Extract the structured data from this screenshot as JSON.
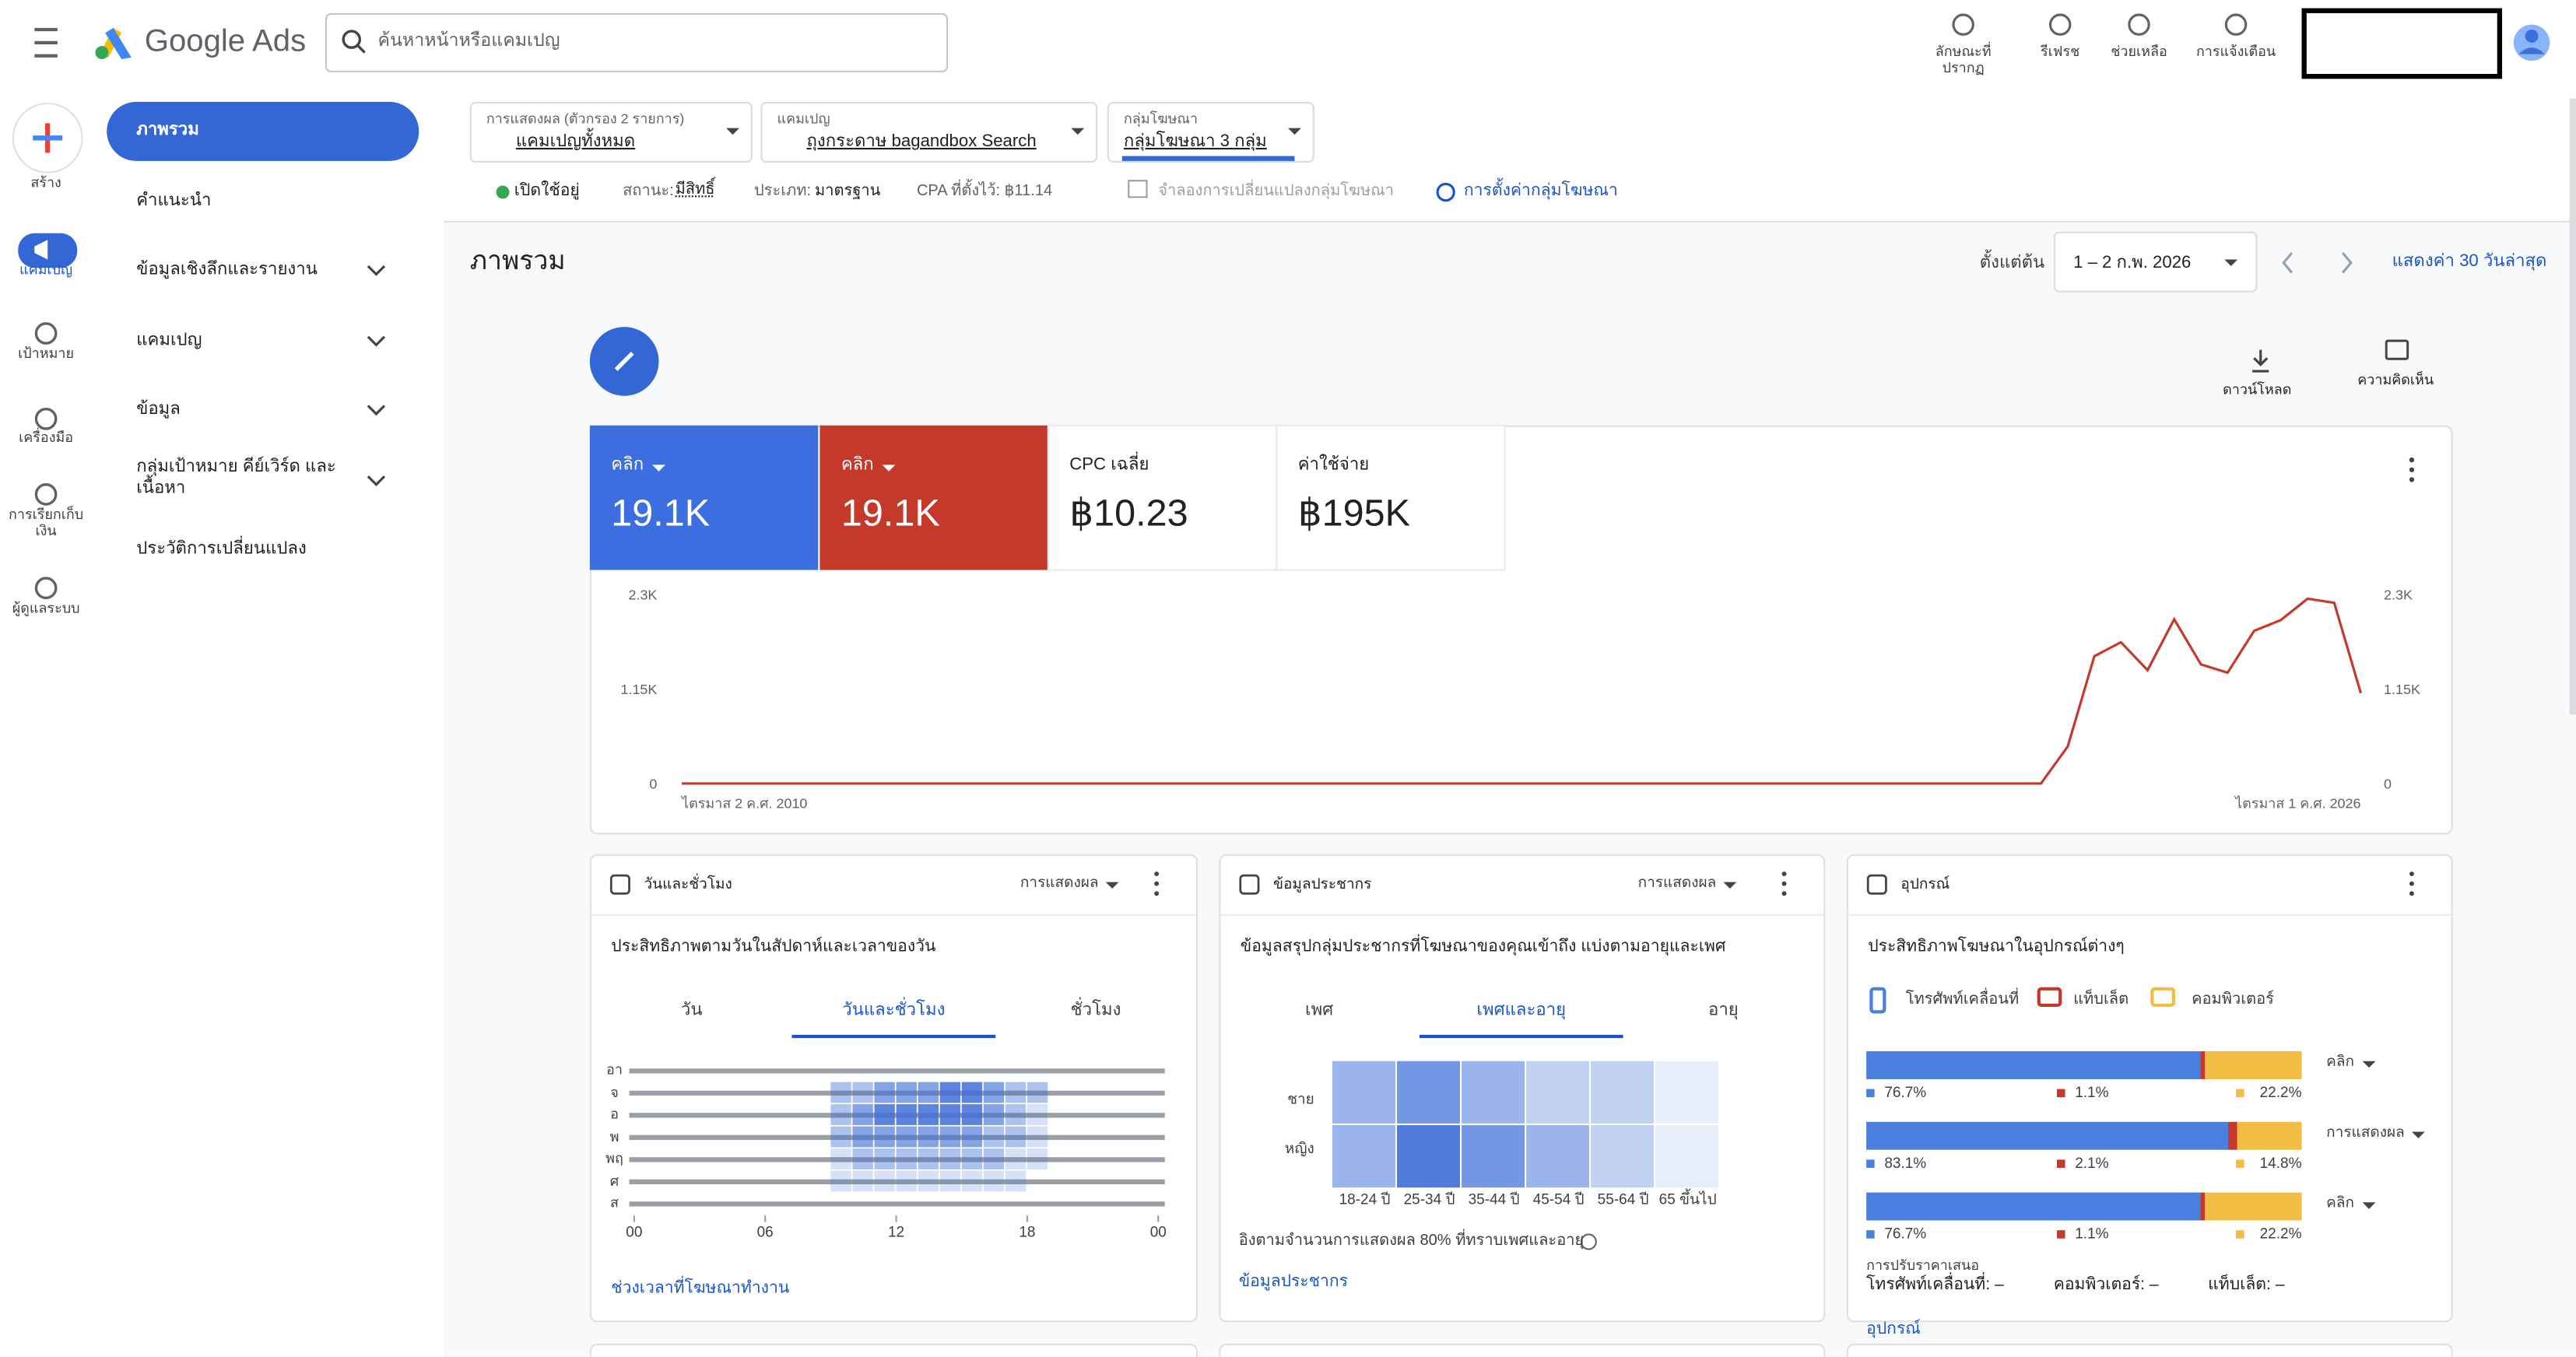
{
  "header": {
    "product": "Google Ads",
    "search_placeholder": "ค้นหาหน้าหรือแคมเปญ",
    "actions": [
      "ลักษณะที่ปรากฏ",
      "รีเฟรช",
      "ช่วยเหลือ",
      "การแจ้งเตือน"
    ]
  },
  "rail": [
    "สร้าง",
    "แคมเปญ",
    "เป้าหมาย",
    "เครื่องมือ",
    "การเรียกเก็บเงิน",
    "ผู้ดูแลระบบ"
  ],
  "nav": [
    "ภาพรวม",
    "คำแนะนำ",
    "ข้อมูลเชิงลึกและรายงาน",
    "แคมเปญ",
    "ข้อมูล",
    "กลุ่มเป้าหมาย คีย์เวิร์ด และเนื้อหา",
    "ประวัติการเปลี่ยนแปลง"
  ],
  "filters": [
    {
      "label": "การแสดงผล (ตัวกรอง 2 รายการ)",
      "value": "แคมเปญทั้งหมด"
    },
    {
      "label": "แคมเปญ",
      "value": "ถุงกระดาษ bagandbox Search"
    },
    {
      "label": "กลุ่มโฆษณา",
      "value": "กลุ่มโฆษณา 3 กลุ่ม"
    }
  ],
  "status": {
    "enabled": "เปิดใช้อยู่",
    "status_label": "สถานะ:",
    "status_value": "มีสิทธิ์",
    "type_label": "ประเภท:",
    "type_value": "มาตรฐาน",
    "cpa": "CPA ที่ตั้งไว้: ฿11.14",
    "simulate": "จำลองการเปลี่ยนแปลงกลุ่มโฆษณา",
    "settings": "การตั้งค่ากลุ่มโฆษณา"
  },
  "page": {
    "title": "ภาพรวม",
    "date_label": "ตั้งแต่ต้น",
    "date_range": "1 – 2 ก.พ. 2026",
    "last30": "แสดงค่า 30 วันล่าสุด",
    "download": "ดาวน์โหลด",
    "feedback": "ความคิดเห็น"
  },
  "scorecards": [
    {
      "label": "คลิก",
      "value": "19.1K"
    },
    {
      "label": "คลิก",
      "value": "19.1K"
    },
    {
      "label": "CPC เฉลี่ย",
      "value": "฿10.23"
    },
    {
      "label": "ค่าใช้จ่าย",
      "value": "฿195K"
    }
  ],
  "chart_data": [
    {
      "type": "line",
      "categories": [
        "ไตรมาส 2 ค.ศ. 2010",
        null,
        null,
        null,
        null,
        null,
        null,
        null,
        null,
        null,
        null,
        null,
        null,
        null,
        null,
        null,
        null,
        null,
        null,
        null,
        null,
        null,
        null,
        null,
        null,
        null,
        null,
        null,
        null,
        null,
        null,
        null,
        null,
        null,
        null,
        null,
        null,
        null,
        null,
        null,
        null,
        null,
        null,
        null,
        null,
        null,
        null,
        null,
        null,
        null,
        null,
        null,
        null,
        null,
        null,
        null,
        null,
        null,
        null,
        null,
        null,
        null,
        null,
        "ไตรมาส 1 ค.ศ. 2026"
      ],
      "series": [
        {
          "color": "#c5392b",
          "values": [
            0,
            0,
            0,
            0,
            0,
            0,
            0,
            0,
            0,
            0,
            0,
            0,
            0,
            0,
            0,
            0,
            0,
            0,
            0,
            0,
            0,
            0,
            0,
            0,
            0,
            0,
            0,
            0,
            0,
            0,
            0,
            0,
            0,
            0,
            0,
            0,
            0,
            0,
            0,
            0,
            0,
            0,
            0,
            0,
            0,
            0,
            0,
            0,
            0,
            0,
            0,
            0,
            450,
            1550,
            1720,
            1380,
            2000,
            1450,
            1350,
            1860,
            1990,
            2250,
            2200,
            1100
          ]
        }
      ],
      "ylim": [
        0,
        2300
      ],
      "yticks": [
        0,
        {
          "value": 1150,
          "label": "1.15K"
        },
        {
          "value": 2300,
          "label": "2.3K"
        }
      ],
      "y2lim": [
        0,
        2300
      ],
      "y2ticks": [
        0,
        {
          "value": 1150,
          "label": "1.15K"
        },
        {
          "value": 2300,
          "label": "2.3K"
        }
      ]
    },
    {
      "type": "heatmap",
      "title": "วันและชั่วโมง",
      "menu": "การแสดงผล",
      "subtitle": "ประสิทธิภาพตามวันในสัปดาห์และเวลาของวัน",
      "tabs": [
        "วัน",
        "วันและชั่วโมง",
        "ชั่วโมง"
      ],
      "selected_tab": 1,
      "rows": [
        "อา",
        "จ",
        "อ",
        "พ",
        "พฤ",
        "ศ",
        "ส"
      ],
      "xlim": [
        0,
        24
      ],
      "xticks": [
        {
          "value": 0,
          "label": "00"
        },
        {
          "value": 6,
          "label": "06"
        },
        12,
        18,
        {
          "value": 24,
          "label": "00"
        }
      ],
      "color": "#3f6fd8",
      "values": [
        [
          0,
          0,
          0,
          0,
          0,
          0,
          0,
          0,
          0,
          0,
          0,
          0,
          0,
          0,
          0,
          0,
          0,
          0,
          0,
          0,
          0,
          0,
          0,
          0
        ],
        [
          0,
          0,
          0,
          0,
          0,
          0,
          0,
          0,
          0,
          2,
          2,
          3,
          3,
          3,
          4,
          4,
          3,
          2,
          2,
          0,
          0,
          0,
          0,
          0
        ],
        [
          0,
          0,
          0,
          0,
          0,
          0,
          0,
          0,
          0,
          2,
          3,
          4,
          4,
          4,
          4,
          4,
          3,
          2,
          1,
          0,
          0,
          0,
          0,
          0
        ],
        [
          0,
          0,
          0,
          0,
          0,
          0,
          0,
          0,
          0,
          2,
          3,
          3,
          3,
          3,
          3,
          3,
          2,
          2,
          1,
          0,
          0,
          0,
          0,
          0
        ],
        [
          0,
          0,
          0,
          0,
          0,
          0,
          0,
          0,
          0,
          1,
          2,
          2,
          2,
          2,
          2,
          2,
          2,
          1,
          1,
          0,
          0,
          0,
          0,
          0
        ],
        [
          0,
          0,
          0,
          0,
          0,
          0,
          0,
          0,
          0,
          1,
          1,
          1,
          1,
          1,
          1,
          1,
          1,
          1,
          0,
          0,
          0,
          0,
          0,
          0
        ],
        [
          0,
          0,
          0,
          0,
          0,
          0,
          0,
          0,
          0,
          0,
          0,
          0,
          0,
          0,
          0,
          0,
          0,
          0,
          0,
          0,
          0,
          0,
          0,
          0
        ]
      ],
      "link": "ช่วงเวลาที่โฆษณาทำงาน"
    },
    {
      "type": "heatmap",
      "title": "ข้อมูลประชากร",
      "menu": "การแสดงผล",
      "subtitle": "ข้อมูลสรุปกลุ่มประชากรที่โฆษณาของคุณเข้าถึง แบ่งตามอายุและเพศ",
      "tabs": [
        "เพศ",
        "เพศและอายุ",
        "อายุ"
      ],
      "selected_tab": 1,
      "rows": [
        "ชาย",
        "หญิง"
      ],
      "categories": [
        "18-24 ปี",
        "25-34 ปี",
        "35-44 ปี",
        "45-54 ปี",
        "55-64 ปี",
        "65 ขึ้นไป"
      ],
      "color": "#3f6fd8",
      "values": [
        [
          2,
          3,
          2,
          1,
          1,
          0
        ],
        [
          2,
          4,
          3,
          2,
          1,
          0
        ]
      ],
      "note": "อิงตามจำนวนการแสดงผล 80% ที่ทราบเพศและอายุ",
      "link": "ข้อมูลประชากร"
    },
    {
      "type": "stacked_bar",
      "title": "อุปกรณ์",
      "subtitle": "ประสิทธิภาพโฆษณาในอุปกรณ์ต่างๆ",
      "categories": [
        "คลิก",
        "การแสดงผล",
        "คลิก"
      ],
      "xlim": [
        0,
        100
      ],
      "series": [
        {
          "name": "โทรศัพท์เคลื่อนที่",
          "color": "#4a7fe0",
          "values": [
            76.7,
            83.1,
            76.7
          ],
          "value_labels": [
            "76.7%",
            "83.1%",
            "76.7%"
          ]
        },
        {
          "name": "แท็บเล็ต",
          "color": "#c5392b",
          "values": [
            1.1,
            2.1,
            1.1
          ],
          "value_labels": [
            "1.1%",
            "2.1%",
            "1.1%"
          ]
        },
        {
          "name": "คอมพิวเตอร์",
          "color": "#f1bd42",
          "values": [
            22.2,
            14.8,
            22.2
          ],
          "value_labels": [
            "22.2%",
            "14.8%",
            "22.2%"
          ]
        }
      ],
      "bid_adjust": {
        "label": "การปรับราคาเสนอ",
        "items": [
          "โทรศัพท์เคลื่อนที่: –",
          "คอมพิวเตอร์: –",
          "แท็บเล็ต: –"
        ]
      },
      "link": "อุปกรณ์"
    }
  ]
}
